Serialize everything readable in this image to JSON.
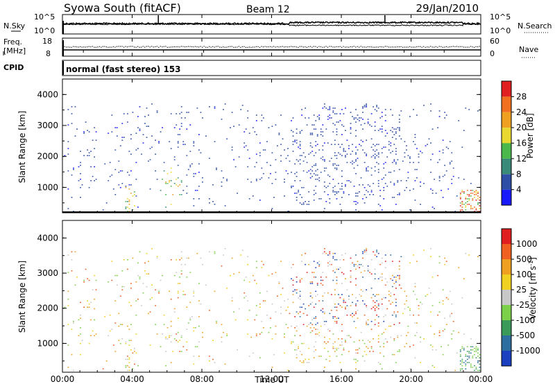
{
  "header": {
    "station": "Syowa South (fitACF)",
    "beam": "Beam 12",
    "date": "29/Jan/2010"
  },
  "noise_panel": {
    "left_label": "N.Sky",
    "right_label": "N.Search",
    "ticks_left": [
      "10^5",
      "10^0"
    ],
    "ticks_right": [
      "10^5",
      "10^0"
    ]
  },
  "freq_panel": {
    "left_label_1": "Freq.",
    "left_label_2": "[MHz]",
    "right_label": "Nave",
    "ticks_left": [
      "18",
      "8"
    ],
    "ticks_right": [
      "60",
      "0"
    ]
  },
  "cpid": {
    "label": "CPID",
    "text": "normal (fast stereo) 153"
  },
  "chart_data": [
    {
      "type": "heatmap",
      "parameter": "Power",
      "ylabel": "Slant Range [km]",
      "xlabel": "Time UT",
      "ylim": [
        180,
        4500
      ],
      "xlim_hours": [
        0,
        24
      ],
      "yticks": [
        "1000",
        "2000",
        "3000",
        "4000"
      ],
      "colorbar": {
        "label": "Power [dB]",
        "ticks": [
          "4",
          "8",
          "12",
          "16",
          "20",
          "24",
          "28"
        ],
        "colors": [
          "#1a1aff",
          "#2e4ea6",
          "#3a8a7a",
          "#4ab84a",
          "#e8d830",
          "#f0a020",
          "#f07020",
          "#e02020"
        ]
      }
    },
    {
      "type": "heatmap",
      "parameter": "Velocity",
      "ylabel": "Slant Range [km]",
      "xlabel": "Time UT",
      "ylim": [
        180,
        4500
      ],
      "xlim_hours": [
        0,
        24
      ],
      "yticks": [
        "1000",
        "2000",
        "3000",
        "4000"
      ],
      "colorbar": {
        "label": "Velocity [m s^-1]",
        "ticks": [
          "1000",
          "500",
          "100",
          "25",
          "-25",
          "-100",
          "-500",
          "-1000"
        ],
        "colors": [
          "#1a3fbf",
          "#2d6ea0",
          "#3a9a5a",
          "#7cd04a",
          "#c8c8c8",
          "#f0d020",
          "#f0a020",
          "#f06020",
          "#e02020"
        ]
      }
    }
  ],
  "xaxis": {
    "ticks": [
      "00:00",
      "04:00",
      "08:00",
      "12:00",
      "16:00",
      "20:00",
      "00:00"
    ],
    "label": "Time UT"
  }
}
